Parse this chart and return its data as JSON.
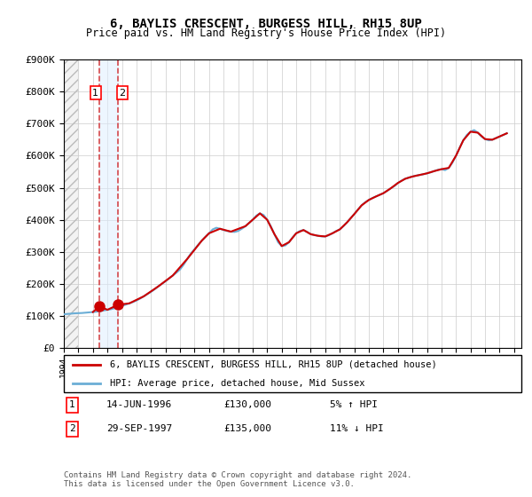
{
  "title": "6, BAYLIS CRESCENT, BURGESS HILL, RH15 8UP",
  "subtitle": "Price paid vs. HM Land Registry's House Price Index (HPI)",
  "ylabel": "",
  "ylim": [
    0,
    900000
  ],
  "yticks": [
    0,
    100000,
    200000,
    300000,
    400000,
    500000,
    600000,
    700000,
    800000,
    900000
  ],
  "ytick_labels": [
    "£0",
    "£100K",
    "£200K",
    "£300K",
    "£400K",
    "£500K",
    "£600K",
    "£700K",
    "£800K",
    "£900K"
  ],
  "xlim_start": 1994.0,
  "xlim_end": 2025.5,
  "hpi_color": "#6baed6",
  "price_color": "#cc0000",
  "hatch_color": "#cccccc",
  "sale1_x": 1996.45,
  "sale1_y": 130000,
  "sale2_x": 1997.75,
  "sale2_y": 135000,
  "legend_line1": "6, BAYLIS CRESCENT, BURGESS HILL, RH15 8UP (detached house)",
  "legend_line2": "HPI: Average price, detached house, Mid Sussex",
  "table_row1_num": "1",
  "table_row1_date": "14-JUN-1996",
  "table_row1_price": "£130,000",
  "table_row1_hpi": "5% ↑ HPI",
  "table_row2_num": "2",
  "table_row2_date": "29-SEP-1997",
  "table_row2_price": "£135,000",
  "table_row2_hpi": "11% ↓ HPI",
  "footer": "Contains HM Land Registry data © Crown copyright and database right 2024.\nThis data is licensed under the Open Government Licence v3.0.",
  "hpi_data_x": [
    1994.0,
    1994.25,
    1994.5,
    1994.75,
    1995.0,
    1995.25,
    1995.5,
    1995.75,
    1996.0,
    1996.25,
    1996.5,
    1996.75,
    1997.0,
    1997.25,
    1997.5,
    1997.75,
    1998.0,
    1998.25,
    1998.5,
    1998.75,
    1999.0,
    1999.25,
    1999.5,
    1999.75,
    2000.0,
    2000.25,
    2000.5,
    2000.75,
    2001.0,
    2001.25,
    2001.5,
    2001.75,
    2002.0,
    2002.25,
    2002.5,
    2002.75,
    2003.0,
    2003.25,
    2003.5,
    2003.75,
    2004.0,
    2004.25,
    2004.5,
    2004.75,
    2005.0,
    2005.25,
    2005.5,
    2005.75,
    2006.0,
    2006.25,
    2006.5,
    2006.75,
    2007.0,
    2007.25,
    2007.5,
    2007.75,
    2008.0,
    2008.25,
    2008.5,
    2008.75,
    2009.0,
    2009.25,
    2009.5,
    2009.75,
    2010.0,
    2010.25,
    2010.5,
    2010.75,
    2011.0,
    2011.25,
    2011.5,
    2011.75,
    2012.0,
    2012.25,
    2012.5,
    2012.75,
    2013.0,
    2013.25,
    2013.5,
    2013.75,
    2014.0,
    2014.25,
    2014.5,
    2014.75,
    2015.0,
    2015.25,
    2015.5,
    2015.75,
    2016.0,
    2016.25,
    2016.5,
    2016.75,
    2017.0,
    2017.25,
    2017.5,
    2017.75,
    2018.0,
    2018.25,
    2018.5,
    2018.75,
    2019.0,
    2019.25,
    2019.5,
    2019.75,
    2020.0,
    2020.25,
    2020.5,
    2020.75,
    2021.0,
    2021.25,
    2021.5,
    2021.75,
    2022.0,
    2022.25,
    2022.5,
    2022.75,
    2023.0,
    2023.25,
    2023.5,
    2023.75,
    2024.0,
    2024.25,
    2024.5
  ],
  "hpi_data_y": [
    105000,
    106000,
    107000,
    108000,
    108500,
    109000,
    110000,
    111000,
    112000,
    113000,
    115000,
    117000,
    119000,
    121000,
    124000,
    127000,
    131000,
    135000,
    139000,
    143000,
    148000,
    154000,
    161000,
    168000,
    175000,
    183000,
    192000,
    200000,
    208000,
    217000,
    226000,
    235000,
    245000,
    260000,
    278000,
    295000,
    308000,
    322000,
    335000,
    347000,
    358000,
    370000,
    375000,
    372000,
    368000,
    365000,
    363000,
    362000,
    365000,
    372000,
    380000,
    390000,
    400000,
    413000,
    420000,
    415000,
    400000,
    380000,
    355000,
    330000,
    318000,
    320000,
    330000,
    345000,
    358000,
    365000,
    368000,
    362000,
    355000,
    352000,
    350000,
    348000,
    348000,
    352000,
    358000,
    365000,
    370000,
    380000,
    392000,
    405000,
    418000,
    432000,
    445000,
    455000,
    462000,
    468000,
    473000,
    478000,
    483000,
    490000,
    498000,
    505000,
    515000,
    522000,
    528000,
    532000,
    535000,
    538000,
    540000,
    542000,
    545000,
    548000,
    552000,
    556000,
    558000,
    555000,
    562000,
    578000,
    600000,
    625000,
    648000,
    665000,
    675000,
    680000,
    672000,
    660000,
    652000,
    648000,
    650000,
    655000,
    660000,
    665000,
    670000
  ],
  "price_data_x": [
    1996.0,
    1996.45,
    1997.0,
    1997.75,
    1998.5,
    1999.5,
    2000.5,
    2001.5,
    2002.5,
    2003.5,
    2004.0,
    2004.75,
    2005.5,
    2006.5,
    2007.0,
    2007.5,
    2008.0,
    2008.5,
    2009.0,
    2009.5,
    2010.0,
    2010.5,
    2011.0,
    2011.5,
    2012.0,
    2012.5,
    2013.0,
    2013.5,
    2014.0,
    2014.5,
    2015.0,
    2015.5,
    2016.0,
    2016.5,
    2017.0,
    2017.5,
    2018.0,
    2018.5,
    2019.0,
    2019.5,
    2020.0,
    2020.5,
    2021.0,
    2021.5,
    2022.0,
    2022.5,
    2023.0,
    2023.5,
    2024.0,
    2024.5
  ],
  "price_data_y": [
    112000,
    130000,
    119000,
    135000,
    139000,
    161000,
    192000,
    226000,
    278000,
    335000,
    358000,
    372000,
    363000,
    380000,
    400000,
    420000,
    400000,
    355000,
    318000,
    330000,
    358000,
    368000,
    355000,
    350000,
    348000,
    358000,
    370000,
    392000,
    418000,
    445000,
    462000,
    473000,
    483000,
    498000,
    515000,
    528000,
    535000,
    540000,
    545000,
    552000,
    558000,
    562000,
    600000,
    648000,
    675000,
    672000,
    652000,
    650000,
    660000,
    670000
  ]
}
